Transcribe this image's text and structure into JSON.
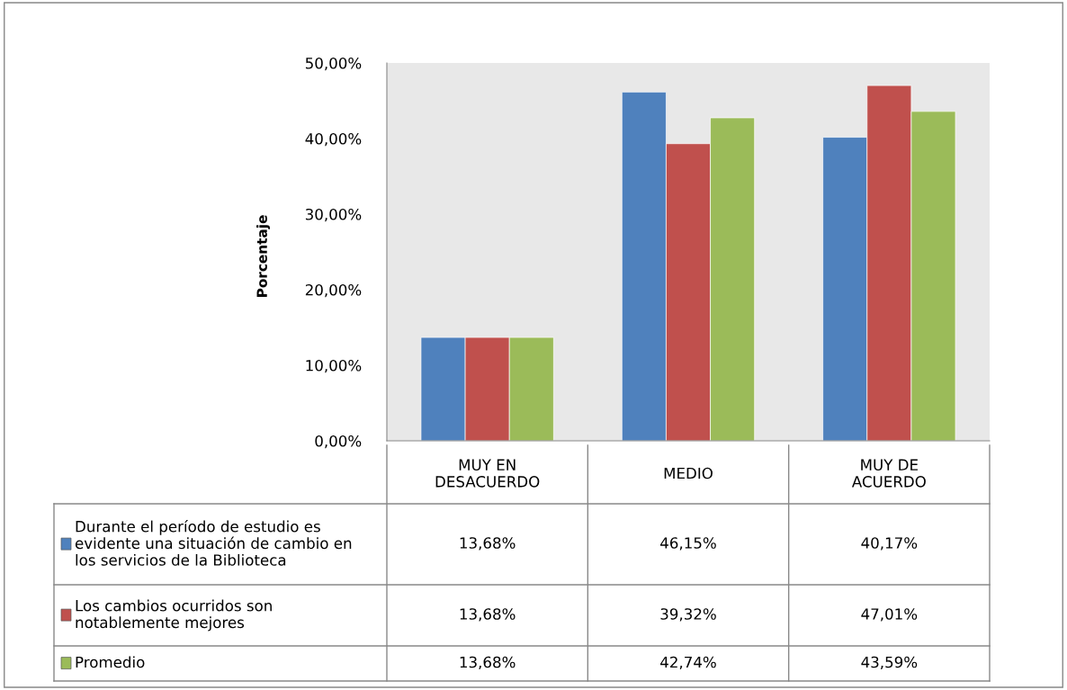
{
  "chart_data": {
    "type": "bar",
    "ylabel": "Porcentaje",
    "categories": [
      "MUY EN DESACUERDO",
      "MEDIO",
      "MUY DE ACUERDO"
    ],
    "series": [
      {
        "name": "Durante el período de estudio es evidente una situación de cambio en los servicios de la Biblioteca",
        "color": "#4f81bd",
        "values": [
          13.68,
          46.15,
          40.17
        ],
        "value_labels": [
          "13,68%",
          "46,15%",
          "40,17%"
        ]
      },
      {
        "name": "Los cambios ocurridos son notablemente mejores",
        "color": "#c0504d",
        "values": [
          13.68,
          39.32,
          47.01
        ],
        "value_labels": [
          "13,68%",
          "39,32%",
          "47,01%"
        ]
      },
      {
        "name": "Promedio",
        "color": "#9bbb59",
        "values": [
          13.68,
          42.74,
          43.59
        ],
        "value_labels": [
          "13,68%",
          "42,74%",
          "43,59%"
        ]
      }
    ],
    "ylim": [
      0,
      50
    ],
    "yticks": [
      {
        "value": 0,
        "label": "0,00%"
      },
      {
        "value": 10,
        "label": "10,00%"
      },
      {
        "value": 20,
        "label": "20,00%"
      },
      {
        "value": 30,
        "label": "30,00%"
      },
      {
        "value": 40,
        "label": "40,00%"
      },
      {
        "value": 50,
        "label": "50,00%"
      }
    ],
    "grid": false,
    "legend": "bottom left"
  }
}
